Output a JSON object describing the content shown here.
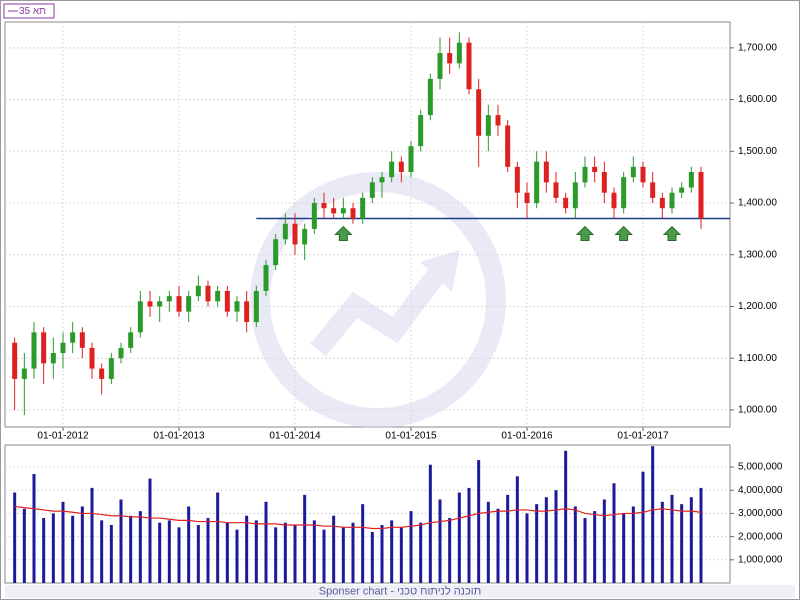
{
  "chart_data": [
    {
      "type": "candlestick",
      "legend": "35 תא",
      "x": [
        "2011-08",
        "2011-09",
        "2011-10",
        "2011-11",
        "2011-12",
        "2012-01",
        "2012-02",
        "2012-03",
        "2012-04",
        "2012-05",
        "2012-06",
        "2012-07",
        "2012-08",
        "2012-09",
        "2012-10",
        "2012-11",
        "2012-12",
        "2013-01",
        "2013-02",
        "2013-03",
        "2013-04",
        "2013-05",
        "2013-06",
        "2013-07",
        "2013-08",
        "2013-09",
        "2013-10",
        "2013-11",
        "2013-12",
        "2014-01",
        "2014-02",
        "2014-03",
        "2014-04",
        "2014-05",
        "2014-06",
        "2014-07",
        "2014-08",
        "2014-09",
        "2014-10",
        "2014-11",
        "2014-12",
        "2015-01",
        "2015-02",
        "2015-03",
        "2015-04",
        "2015-05",
        "2015-06",
        "2015-07",
        "2015-08",
        "2015-09",
        "2015-10",
        "2015-11",
        "2015-12",
        "2016-01",
        "2016-02",
        "2016-03",
        "2016-04",
        "2016-05",
        "2016-06",
        "2016-07",
        "2016-08",
        "2016-09",
        "2016-10",
        "2016-11",
        "2016-12",
        "2017-01",
        "2017-02",
        "2017-03",
        "2017-04",
        "2017-05",
        "2017-06",
        "2017-07"
      ],
      "open": [
        1130,
        1060,
        1080,
        1150,
        1090,
        1110,
        1130,
        1150,
        1120,
        1080,
        1060,
        1100,
        1120,
        1150,
        1210,
        1200,
        1210,
        1220,
        1190,
        1220,
        1240,
        1210,
        1230,
        1190,
        1210,
        1170,
        1230,
        1280,
        1330,
        1360,
        1320,
        1350,
        1400,
        1390,
        1380,
        1390,
        1370,
        1410,
        1440,
        1450,
        1480,
        1460,
        1510,
        1570,
        1640,
        1690,
        1670,
        1710,
        1620,
        1530,
        1570,
        1550,
        1470,
        1420,
        1400,
        1480,
        1440,
        1410,
        1390,
        1440,
        1470,
        1460,
        1420,
        1390,
        1450,
        1470,
        1440,
        1410,
        1390,
        1420,
        1430,
        1460
      ],
      "high": [
        1140,
        1110,
        1170,
        1160,
        1140,
        1150,
        1170,
        1160,
        1130,
        1090,
        1110,
        1130,
        1160,
        1230,
        1230,
        1220,
        1230,
        1240,
        1230,
        1260,
        1250,
        1240,
        1240,
        1220,
        1230,
        1240,
        1290,
        1340,
        1380,
        1380,
        1360,
        1410,
        1420,
        1410,
        1410,
        1400,
        1420,
        1450,
        1460,
        1500,
        1490,
        1520,
        1580,
        1650,
        1720,
        1720,
        1730,
        1720,
        1640,
        1590,
        1590,
        1560,
        1480,
        1440,
        1500,
        1500,
        1460,
        1420,
        1460,
        1490,
        1490,
        1480,
        1430,
        1460,
        1490,
        1480,
        1460,
        1420,
        1430,
        1440,
        1470,
        1470
      ],
      "low": [
        1000,
        990,
        1060,
        1050,
        1060,
        1080,
        1110,
        1100,
        1060,
        1030,
        1050,
        1090,
        1110,
        1140,
        1180,
        1170,
        1190,
        1180,
        1170,
        1210,
        1200,
        1200,
        1180,
        1170,
        1150,
        1160,
        1220,
        1270,
        1320,
        1300,
        1290,
        1340,
        1370,
        1370,
        1370,
        1360,
        1360,
        1400,
        1410,
        1440,
        1440,
        1450,
        1500,
        1560,
        1620,
        1650,
        1660,
        1610,
        1470,
        1500,
        1530,
        1460,
        1390,
        1370,
        1390,
        1420,
        1400,
        1380,
        1370,
        1430,
        1440,
        1400,
        1370,
        1380,
        1440,
        1430,
        1400,
        1370,
        1380,
        1410,
        1420,
        1350
      ],
      "close": [
        1060,
        1080,
        1150,
        1090,
        1110,
        1130,
        1150,
        1120,
        1080,
        1060,
        1100,
        1120,
        1150,
        1210,
        1200,
        1210,
        1220,
        1190,
        1220,
        1240,
        1210,
        1230,
        1190,
        1210,
        1170,
        1230,
        1280,
        1330,
        1360,
        1320,
        1350,
        1400,
        1390,
        1380,
        1390,
        1370,
        1410,
        1440,
        1450,
        1480,
        1460,
        1510,
        1570,
        1640,
        1690,
        1670,
        1710,
        1620,
        1530,
        1570,
        1550,
        1470,
        1420,
        1400,
        1480,
        1440,
        1410,
        1390,
        1440,
        1470,
        1460,
        1420,
        1390,
        1450,
        1470,
        1440,
        1410,
        1390,
        1420,
        1430,
        1460,
        1370
      ],
      "up_color": "#2a9a2a",
      "down_color": "#dd2020",
      "xlim": [
        "2011-07",
        "2017-10"
      ],
      "xticks": [
        {
          "value": "2012-01",
          "label": "01-01-2012"
        },
        {
          "value": "2013-01",
          "label": "01-01-2013"
        },
        {
          "value": "2014-01",
          "label": "01-01-2014"
        },
        {
          "value": "2015-01",
          "label": "01-01-2015"
        },
        {
          "value": "2016-01",
          "label": "01-01-2016"
        },
        {
          "value": "2017-01",
          "label": "01-01-2017"
        }
      ],
      "ylim": [
        967,
        1750
      ],
      "yticks": [
        {
          "value": 1000,
          "label": "1,000.00"
        },
        {
          "value": 1100,
          "label": "1,100.00"
        },
        {
          "value": 1200,
          "label": "1,200.00"
        },
        {
          "value": 1300,
          "label": "1,300.00"
        },
        {
          "value": 1400,
          "label": "1,400.00"
        },
        {
          "value": 1500,
          "label": "1,500.00"
        },
        {
          "value": 1600,
          "label": "1,600.00"
        },
        {
          "value": 1700,
          "label": "1,700.00"
        }
      ],
      "grid": true,
      "support_level": 1370,
      "support_start": "2013-09",
      "support_color": "#1a3a8a",
      "markers": [
        "2014-06",
        "2016-07",
        "2016-11",
        "2017-04"
      ],
      "marker_color": "#4a9a4a"
    },
    {
      "type": "bar",
      "x": [
        "2011-08",
        "2011-09",
        "2011-10",
        "2011-11",
        "2011-12",
        "2012-01",
        "2012-02",
        "2012-03",
        "2012-04",
        "2012-05",
        "2012-06",
        "2012-07",
        "2012-08",
        "2012-09",
        "2012-10",
        "2012-11",
        "2012-12",
        "2013-01",
        "2013-02",
        "2013-03",
        "2013-04",
        "2013-05",
        "2013-06",
        "2013-07",
        "2013-08",
        "2013-09",
        "2013-10",
        "2013-11",
        "2013-12",
        "2014-01",
        "2014-02",
        "2014-03",
        "2014-04",
        "2014-05",
        "2014-06",
        "2014-07",
        "2014-08",
        "2014-09",
        "2014-10",
        "2014-11",
        "2014-12",
        "2015-01",
        "2015-02",
        "2015-03",
        "2015-04",
        "2015-05",
        "2015-06",
        "2015-07",
        "2015-08",
        "2015-09",
        "2015-10",
        "2015-11",
        "2015-12",
        "2016-01",
        "2016-02",
        "2016-03",
        "2016-04",
        "2016-05",
        "2016-06",
        "2016-07",
        "2016-08",
        "2016-09",
        "2016-10",
        "2016-11",
        "2016-12",
        "2017-01",
        "2017-02",
        "2017-03",
        "2017-04",
        "2017-05",
        "2017-06",
        "2017-07"
      ],
      "values": [
        3900000,
        3200000,
        4700000,
        2800000,
        3000000,
        3500000,
        2900000,
        3300000,
        4100000,
        2700000,
        2500000,
        3600000,
        2900000,
        3100000,
        4500000,
        2600000,
        2700000,
        2400000,
        3300000,
        2500000,
        2800000,
        3900000,
        2600000,
        2300000,
        2900000,
        2700000,
        3500000,
        2400000,
        2600000,
        2500000,
        3800000,
        2700000,
        2300000,
        2900000,
        2400000,
        2600000,
        3400000,
        2200000,
        2500000,
        2700000,
        2400000,
        3100000,
        2600000,
        5100000,
        3600000,
        2800000,
        3900000,
        4100000,
        5300000,
        3500000,
        3200000,
        3800000,
        4600000,
        3000000,
        3400000,
        3700000,
        4000000,
        5700000,
        3300000,
        2800000,
        3100000,
        3600000,
        4300000,
        3000000,
        3300000,
        4800000,
        5900000,
        3500000,
        3800000,
        3400000,
        3700000,
        4100000
      ],
      "average": [
        3300000,
        3250000,
        3200000,
        3150000,
        3100000,
        3100000,
        3050000,
        3000000,
        3000000,
        2950000,
        2900000,
        2900000,
        2850000,
        2850000,
        2800000,
        2800000,
        2750000,
        2700000,
        2700000,
        2650000,
        2650000,
        2650000,
        2600000,
        2600000,
        2600000,
        2550000,
        2550000,
        2550000,
        2500000,
        2500000,
        2500000,
        2500000,
        2450000,
        2450000,
        2400000,
        2400000,
        2400000,
        2350000,
        2350000,
        2400000,
        2400000,
        2450000,
        2500000,
        2600000,
        2650000,
        2700000,
        2800000,
        2900000,
        3000000,
        3050000,
        3100000,
        3100000,
        3150000,
        3150000,
        3100000,
        3100000,
        3150000,
        3200000,
        3150000,
        3000000,
        2950000,
        2900000,
        2950000,
        3000000,
        3000000,
        3050000,
        3150000,
        3200000,
        3150000,
        3100000,
        3100000,
        3050000
      ],
      "color": "#1a1a9a",
      "average_color": "#e02020",
      "xlim": [
        "2011-07",
        "2017-10"
      ],
      "ylim": [
        0,
        5950000
      ],
      "yticks": [
        {
          "value": 1000000,
          "label": "1,000,000"
        },
        {
          "value": 2000000,
          "label": "2,000,000"
        },
        {
          "value": 3000000,
          "label": "3,000,000"
        },
        {
          "value": 4000000,
          "label": "4,000,000"
        },
        {
          "value": 5000000,
          "label": "5,000,000"
        }
      ]
    }
  ],
  "footer": "Sponser chart - תוכנה לניתוח טכני"
}
